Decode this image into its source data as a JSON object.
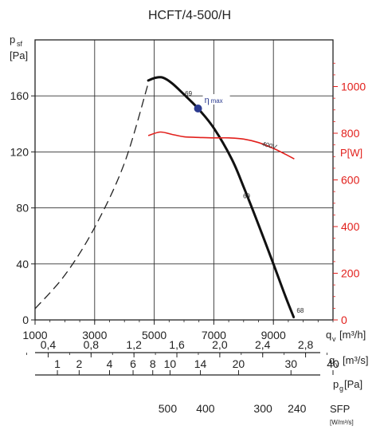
{
  "chart_data": {
    "type": "line",
    "title": "HCFT/4-500/H",
    "ylabel": "p",
    "ylabel_sub": "sf",
    "ylabel_unit": "[Pa]",
    "ylim": [
      0,
      200
    ],
    "y_ticks": [
      0,
      40,
      80,
      120,
      160
    ],
    "xlim": [
      1000,
      11000
    ],
    "x_ticks": [
      1000,
      3000,
      5000,
      7000,
      9000
    ],
    "xlabel": "q",
    "xlabel_sub": "v",
    "xlabel_unit": "[m³/h]",
    "grid": true,
    "right_axis": {
      "label": "P[W]",
      "ylim": [
        0,
        1200
      ],
      "ticks": [
        0,
        200,
        400,
        600,
        800,
        1000
      ],
      "color": "#e2201c"
    },
    "aux_scales": [
      {
        "name": "flow-m3s",
        "label": "q",
        "label_sub": "v",
        "unit": "[m³/s]",
        "ticks": [
          {
            "label": "0,4",
            "qv": 1440
          },
          {
            "label": "0,8",
            "qv": 2880
          },
          {
            "label": "1,2",
            "qv": 4320
          },
          {
            "label": "1,6",
            "qv": 5760
          },
          {
            "label": "2,0",
            "qv": 7200
          },
          {
            "label": "2,4",
            "qv": 8640
          },
          {
            "label": "2,8",
            "qv": 10080
          }
        ]
      },
      {
        "name": "dynamic-pressure",
        "label": "p",
        "label_sub": "g",
        "unit": "[Pa]",
        "ticks": [
          {
            "label": "1",
            "qv": 1750
          },
          {
            "label": "2",
            "qv": 2480
          },
          {
            "label": "4",
            "qv": 3500
          },
          {
            "label": "6",
            "qv": 4290
          },
          {
            "label": "8",
            "qv": 4950
          },
          {
            "label": "10",
            "qv": 5530
          },
          {
            "label": "14",
            "qv": 6550
          },
          {
            "label": "20",
            "qv": 7830
          },
          {
            "label": "30",
            "qv": 9590
          },
          {
            "label": "40",
            "qv": 11000
          }
        ]
      },
      {
        "name": "sfp",
        "label": "SFP",
        "unit": "[W/m³/s]",
        "ticks": [
          {
            "label": "500",
            "qv": 5450
          },
          {
            "label": "400",
            "qv": 6720
          },
          {
            "label": "300",
            "qv": 8650
          },
          {
            "label": "240",
            "qv": 9790
          }
        ]
      }
    ],
    "series": [
      {
        "role": "pressure-dashed",
        "color": "#222222",
        "x": [
          1000,
          2000,
          3000,
          4000,
          4800
        ],
        "y": [
          8,
          32,
          66,
          112,
          169
        ]
      },
      {
        "role": "pressure",
        "color": "#111111",
        "x": [
          4800,
          5050,
          5300,
          5600,
          6000,
          6470,
          7000,
          7600,
          8000,
          8500,
          9000,
          9400,
          9680
        ],
        "y": [
          171,
          173,
          173,
          169,
          161,
          151,
          137,
          115,
          95,
          68,
          40,
          17,
          2
        ]
      },
      {
        "name": "400V",
        "role": "power",
        "axis": "right",
        "color": "#e2201c",
        "x": [
          4800,
          5200,
          5600,
          6000,
          6500,
          7000,
          7500,
          8000,
          8500,
          9000,
          9400,
          9700
        ],
        "y": [
          790,
          805,
          795,
          785,
          782,
          780,
          780,
          775,
          760,
          735,
          710,
          690
        ]
      }
    ],
    "annotations": {
      "eta_max": {
        "label": "η",
        "sub": "max",
        "x": 6470,
        "y": 151
      },
      "noise_labels": [
        {
          "text": "69",
          "x": 6150,
          "y": 160
        },
        {
          "text": "69",
          "x": 8100,
          "y": 87
        },
        {
          "text": "68",
          "x": 9900,
          "y": 5
        }
      ]
    }
  }
}
